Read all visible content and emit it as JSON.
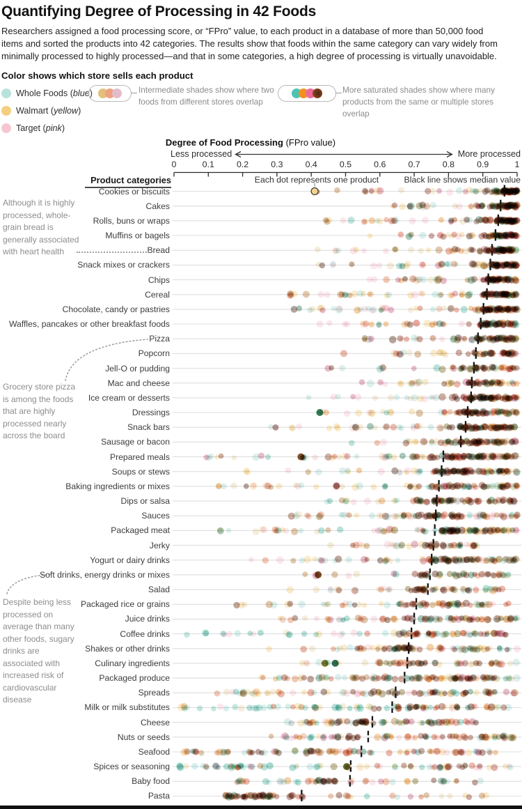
{
  "header": {
    "title": "Quantifying Degree of Processing in 42 Foods",
    "subtitle": "Researchers assigned a food processing score, or “FPro” value, to each product in a database of more than 50,000 food\nitems and sorted the products into 42 categories. The results show that foods within the same category can vary widely from\nminimally processed to highly processed—and that in some categories, a high degree of processing is virtually unavoidable."
  },
  "legend": {
    "heading": "Color shows which store sells each product",
    "stores": [
      {
        "name": "Whole Foods",
        "color_word": "blue",
        "color": "#b7e3dc"
      },
      {
        "name": "Walmart",
        "color_word": "yellow",
        "color": "#f4cf7f"
      },
      {
        "name": "Target",
        "color_word": "pink",
        "color": "#f6c6d2"
      }
    ],
    "intermediate": {
      "caption": "Intermediate shades show where two\nfoods from different stores overlap",
      "dot_colors": [
        "#e2c07b",
        "#efa183",
        "#e3bccb"
      ]
    },
    "saturated": {
      "caption": "More saturated shades show where many\nproducts from the same or multiple stores overlap",
      "dot_colors": [
        "#4cc4b5",
        "#f29120",
        "#ef6a9b",
        "maroon-radial"
      ]
    }
  },
  "axis": {
    "title_bold": "Degree of Food Processing",
    "title_normal": " (FPro value)",
    "left_label": "Less processed",
    "right_label": "More processed",
    "ticks": [
      "0",
      "0.1",
      "0.2",
      "0.3",
      "0.4",
      "0.5",
      "0.6",
      "0.7",
      "0.8",
      "0.9",
      "1"
    ]
  },
  "column_headers": {
    "categories": "Product categories",
    "dots": "Each dot represents one product",
    "median": "Black line shows median value"
  },
  "annotations": {
    "bread": "Although it is highly\nprocessed, whole-\ngrain bread is\ngenerally associated\nwith heart health",
    "pizza": "Grocery store pizza\nis among the foods\nthat are highly\nprocessed nearly\nacross the board",
    "sugary": "Despite being less\nprocessed on\naverage than many\nother foods, sugary\ndrinks are\nassociated with\nincreased risk of\ncardiovascular\ndisease"
  },
  "colors": {
    "pastel": [
      "#abdcd4",
      "#f2cf85",
      "#f5c6d2",
      "#e9d4a9"
    ],
    "mid": [
      "#e88f2f",
      "#e07b4f",
      "#cf5a3a",
      "#c9607f",
      "#b77b3a",
      "#58b9a8"
    ],
    "dark": [
      "#8e3b1f",
      "#6b2d16",
      "#4f2413",
      "#8c3b2a",
      "#7a6a1f",
      "#2e7d5b"
    ],
    "teal": [
      "#9edcd3",
      "#6fc7b8",
      "#49b3a2"
    ],
    "median_line": "#141414",
    "row_line": "#dedede",
    "annotated_dot_fill": "#f3d488"
  },
  "chart_data": {
    "type": "scatter",
    "title": "Quantifying Degree of Processing in 42 Foods",
    "xlabel": "Degree of Food Processing (FPro value)",
    "xlim": [
      0,
      1
    ],
    "x_direction": "Less processed to More processed",
    "annotated_dot": {
      "category": "Cookies or biscuits",
      "value": 0.41
    },
    "categories": [
      {
        "label": "Cookies or biscuits",
        "median": 0.963,
        "lo": 0.41,
        "peak": 0.955,
        "hi": 1.0,
        "n": 88
      },
      {
        "label": "Cakes",
        "median": 0.952,
        "lo": 0.6,
        "peak": 0.945,
        "hi": 1.0,
        "n": 72
      },
      {
        "label": "Rolls, buns or wraps",
        "median": 0.945,
        "lo": 0.4,
        "peak": 0.94,
        "hi": 1.0,
        "n": 85,
        "tailPow": 1.7
      },
      {
        "label": "Muffins or bagels",
        "median": 0.937,
        "lo": 0.47,
        "peak": 0.93,
        "hi": 1.0,
        "n": 70
      },
      {
        "label": "Bread",
        "median": 0.927,
        "lo": 0.4,
        "peak": 0.925,
        "hi": 1.0,
        "n": 85
      },
      {
        "label": "Snack mixes or crackers",
        "median": 0.922,
        "lo": 0.42,
        "peak": 0.92,
        "hi": 1.0,
        "n": 85,
        "tailPow": 1.8
      },
      {
        "label": "Chips",
        "median": 0.916,
        "lo": 0.53,
        "peak": 0.915,
        "hi": 1.0,
        "n": 80
      },
      {
        "label": "Cereal",
        "median": 0.912,
        "lo": 0.3,
        "peak": 0.91,
        "hi": 1.0,
        "n": 95,
        "tailPow": 1.5
      },
      {
        "label": "Chocolate, candy or pastries",
        "median": 0.902,
        "lo": 0.35,
        "peak": 0.9,
        "hi": 1.0,
        "n": 95,
        "tailPow": 1.5
      },
      {
        "label": "Waffles, pancakes or other breakfast foods",
        "median": 0.894,
        "lo": 0.42,
        "peak": 0.89,
        "hi": 1.0,
        "n": 70
      },
      {
        "label": "Pizza",
        "median": 0.886,
        "lo": 0.55,
        "peak": 0.885,
        "hi": 1.0,
        "n": 75
      },
      {
        "label": "Popcorn",
        "median": 0.88,
        "lo": 0.46,
        "peak": 0.875,
        "hi": 1.0,
        "n": 50
      },
      {
        "label": "Jell-O or pudding",
        "median": 0.874,
        "lo": 0.37,
        "peak": 0.87,
        "hi": 1.0,
        "n": 46,
        "tailPow": 1.6
      },
      {
        "label": "Mac and cheese",
        "median": 0.868,
        "lo": 0.52,
        "peak": 0.865,
        "hi": 1.0,
        "n": 60,
        "tailPow": 1.6
      },
      {
        "label": "Ice cream or desserts",
        "median": 0.866,
        "lo": 0.33,
        "peak": 0.865,
        "hi": 1.0,
        "n": 90,
        "tailPow": 1.9
      },
      {
        "label": "Dressings",
        "median": 0.856,
        "lo": 0.43,
        "peak": 0.855,
        "hi": 1.0,
        "n": 80,
        "accents": [
          {
            "v": 0.425,
            "c": "#1e6f3f"
          }
        ]
      },
      {
        "label": "Snack bars",
        "median": 0.85,
        "lo": 0.28,
        "peak": 0.85,
        "hi": 1.0,
        "n": 95,
        "tailPow": 1.8
      },
      {
        "label": "Sausage or bacon",
        "median": 0.836,
        "lo": 0.48,
        "peak": 0.835,
        "hi": 1.0,
        "n": 80
      },
      {
        "label": "Prepared meals",
        "median": 0.785,
        "lo": 0.09,
        "peak": 0.8,
        "hi": 1.0,
        "n": 110,
        "tailPow": 1.9,
        "accents": [
          {
            "v": 0.37,
            "c": "#7a4312"
          }
        ]
      },
      {
        "label": "Soups or stews",
        "median": 0.78,
        "lo": 0.18,
        "peak": 0.78,
        "hi": 1.0,
        "n": 90,
        "tailPow": 1.8
      },
      {
        "label": "Baking ingredients or mixes",
        "median": 0.772,
        "lo": 0.12,
        "peak": 0.77,
        "hi": 1.0,
        "n": 90,
        "tailPow": 1.6
      },
      {
        "label": "Dips or salsa",
        "median": 0.766,
        "lo": 0.42,
        "peak": 0.76,
        "hi": 1.0,
        "n": 75
      },
      {
        "label": "Sauces",
        "median": 0.763,
        "lo": 0.3,
        "peak": 0.76,
        "hi": 1.0,
        "n": 85,
        "tailPow": 1.8
      },
      {
        "label": "Packaged meat",
        "median": 0.76,
        "lo": 0.02,
        "peak": 0.78,
        "hi": 1.0,
        "n": 100,
        "tailPow": 1.4
      },
      {
        "label": "Jerky",
        "median": 0.756,
        "lo": 0.43,
        "peak": 0.75,
        "hi": 0.9,
        "n": 45,
        "rightFrac": 0.5
      },
      {
        "label": "Yogurt or dairy drinks",
        "median": 0.751,
        "lo": 0.22,
        "peak": 0.75,
        "hi": 1.0,
        "n": 90,
        "tailPow": 1.8
      },
      {
        "label": "Soft drinks, energy drinks or mixes",
        "median": 0.746,
        "lo": 0.37,
        "peak": 0.74,
        "hi": 0.98,
        "n": 48,
        "accents": [
          {
            "v": 0.42,
            "c": "#6b3a0e"
          }
        ]
      },
      {
        "label": "Salad",
        "median": 0.74,
        "lo": 0.28,
        "peak": 0.73,
        "hi": 0.98,
        "n": 55
      },
      {
        "label": "Packaged rice or grains",
        "median": 0.706,
        "lo": 0.14,
        "peak": 0.7,
        "hi": 0.98,
        "n": 70,
        "tailPow": 1.6
      },
      {
        "label": "Juice drinks",
        "median": 0.7,
        "lo": 0.24,
        "peak": 0.7,
        "hi": 1.0,
        "n": 90,
        "tailPow": 1.8
      },
      {
        "label": "Coffee drinks",
        "median": 0.692,
        "lo": 0.03,
        "peak": 0.69,
        "hi": 0.97,
        "n": 75,
        "tailPow": 1.3,
        "rightFrac": 0.55,
        "tailTeal": true
      },
      {
        "label": "Shakes or other drinks",
        "median": 0.684,
        "lo": 0.27,
        "peak": 0.66,
        "hi": 1.0,
        "n": 75,
        "tailPow": 1.7
      },
      {
        "label": "Culinary ingredients",
        "median": 0.68,
        "lo": 0.36,
        "peak": 0.66,
        "hi": 1.0,
        "n": 55,
        "accents": [
          {
            "v": 0.44,
            "c": "#6f6a15"
          },
          {
            "v": 0.47,
            "c": "#1d6b4a"
          }
        ]
      },
      {
        "label": "Packaged produce",
        "median": 0.672,
        "lo": 0.17,
        "peak": 0.67,
        "hi": 1.0,
        "n": 100,
        "tailPow": 1.5,
        "leftWarm": true
      },
      {
        "label": "Spreads",
        "median": 0.646,
        "lo": 0.08,
        "peak": 0.62,
        "hi": 1.0,
        "n": 85,
        "tailPow": 1.5
      },
      {
        "label": "Milk or milk substitutes",
        "median": 0.636,
        "lo": 0.02,
        "peak": 0.62,
        "hi": 0.98,
        "n": 85,
        "tailPow": 1.0,
        "rightFrac": 0.5,
        "tailTeal": true
      },
      {
        "label": "Cheese",
        "median": 0.578,
        "lo": 0.32,
        "peak": 0.56,
        "hi": 0.93,
        "n": 75,
        "tailPow": 1.6,
        "rightFrac": 0.55
      },
      {
        "label": "Nuts or seeds",
        "median": 0.566,
        "lo": 0.28,
        "peak": 0.52,
        "hi": 1.0,
        "n": 80,
        "tailPow": 1.5
      },
      {
        "label": "Seafood",
        "median": 0.546,
        "lo": 0.02,
        "peak": 0.55,
        "hi": 0.95,
        "n": 85,
        "tailPow": 1.1,
        "rightFrac": 0.5,
        "leftWarm": true
      },
      {
        "label": "Spices or seasoning",
        "median": 0.515,
        "lo": 0.01,
        "peak": 0.5,
        "hi": 0.98,
        "n": 75,
        "tailPow": 0.8,
        "rightFrac": 0.5,
        "tailTeal": true,
        "accents": [
          {
            "v": 0.503,
            "c": "#565910"
          }
        ]
      },
      {
        "label": "Baby food",
        "median": 0.513,
        "lo": 0.18,
        "peak": 0.47,
        "hi": 0.93,
        "n": 55,
        "tailPow": 1.6,
        "rightFrac": 0.5,
        "tailTeal": true
      },
      {
        "label": "Pasta",
        "median": 0.372,
        "lo": 0.15,
        "peak": 0.3,
        "hi": 0.95,
        "n": 70,
        "tailPow": 1.1,
        "rightFrac": 0.42,
        "leftWarm": true
      }
    ]
  }
}
